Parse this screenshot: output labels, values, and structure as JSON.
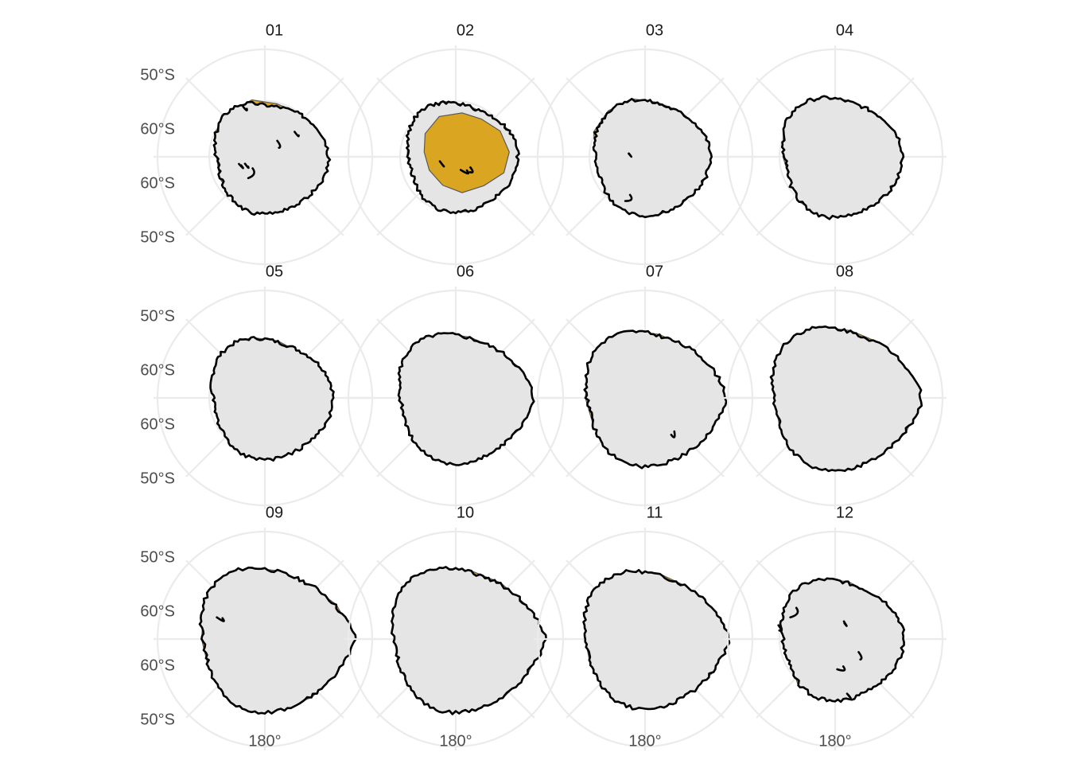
{
  "chart_data": {
    "type": "faceted polar map (sea-ice extent polygons, Antarctic)",
    "projection": "south polar",
    "grid": true,
    "ylabels": [
      "50°S",
      "60°S",
      "60°S",
      "50°S"
    ],
    "xlabel_tick": "180°",
    "colors": {
      "gap_fill": "#DAA520",
      "ice_fill": "#E5E5E5",
      "outline": "#000000",
      "hull_edge": "#595959",
      "grid": "#EBEBEB"
    },
    "panels": [
      {
        "label": "01",
        "scale": 0.82,
        "spike": 0.0,
        "gap": 0.18,
        "gap_dir": "north",
        "fragments": 6
      },
      {
        "label": "02",
        "scale": 0.8,
        "spike": 0.0,
        "gap": 0.9,
        "gap_dir": "center",
        "fragments": 3
      },
      {
        "label": "03",
        "scale": 0.84,
        "spike": 0.0,
        "gap": 0.12,
        "gap_dir": "northwest",
        "fragments": 2
      },
      {
        "label": "04",
        "scale": 0.87,
        "spike": 0.0,
        "gap": 0.06,
        "gap_dir": "west",
        "fragments": 0
      },
      {
        "label": "05",
        "scale": 0.88,
        "spike": 0.0,
        "gap": 0.03,
        "gap_dir": "west",
        "fragments": 0
      },
      {
        "label": "06",
        "scale": 0.94,
        "spike": 0.05,
        "gap": 0.0,
        "gap_dir": "none",
        "fragments": 0
      },
      {
        "label": "07",
        "scale": 0.98,
        "spike": 0.06,
        "gap": 0.0,
        "gap_dir": "none",
        "fragments": 1
      },
      {
        "label": "08",
        "scale": 1.04,
        "spike": 0.07,
        "gap": 0.0,
        "gap_dir": "none",
        "fragments": 0
      },
      {
        "label": "09",
        "scale": 1.05,
        "spike": 0.1,
        "gap": 0.0,
        "gap_dir": "none",
        "fragments": 1
      },
      {
        "label": "10",
        "scale": 1.05,
        "spike": 0.1,
        "gap": 0.0,
        "gap_dir": "none",
        "fragments": 0
      },
      {
        "label": "11",
        "scale": 1.0,
        "spike": 0.07,
        "gap": 0.0,
        "gap_dir": "none",
        "fragments": 0
      },
      {
        "label": "12",
        "scale": 0.88,
        "spike": 0.0,
        "gap": 0.0,
        "gap_dir": "none",
        "fragments": 6
      }
    ]
  }
}
